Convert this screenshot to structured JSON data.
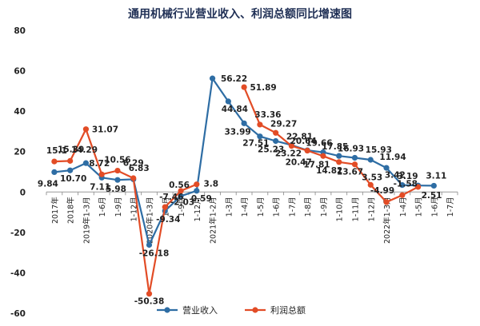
{
  "chart_data": {
    "type": "line",
    "title": "通用机械行业营业收入、利润总额同比增速图",
    "ylim": [
      -60,
      80
    ],
    "yticks": [
      80,
      60,
      40,
      20,
      0,
      -20,
      -40,
      -60
    ],
    "grid": false,
    "legend_position": "bottom-center",
    "categories": [
      "2017年",
      "2018年",
      "2019年1-3月",
      "1-6月",
      "1-9月",
      "1-12月",
      "2020年1-3月",
      "1-6月",
      "1-9月",
      "1-12月",
      "2021年1-2月",
      "1-3月",
      "1-4月",
      "1-5月",
      "1-6月",
      "1-7月",
      "1-8月",
      "1-9月",
      "1-10月",
      "1-11月",
      "1-12月",
      "2022年1-3月",
      "1-4月",
      "1-5月",
      "1-6月",
      "1-7月"
    ],
    "series": [
      {
        "name": "营业收入",
        "color": "#2e6da4",
        "values": [
          9.84,
          10.7,
          14.29,
          7.11,
          5.98,
          6.29,
          -26.18,
          -9.34,
          -2.03,
          0.59,
          56.22,
          44.84,
          33.99,
          27.51,
          25.23,
          23.22,
          20.64,
          19.66,
          17.85,
          16.93,
          15.93,
          11.94,
          3.42,
          3.19,
          3.11,
          null
        ],
        "labels": [
          "9.84",
          "10.70",
          "14.29",
          "7.11",
          "5.98",
          "6.29",
          "-26.18",
          "-9.34",
          "-2.03",
          "0.59",
          "56.22",
          "44.84",
          "33.99",
          "27.51",
          "25.23",
          "23.22",
          "20.64",
          "19.66",
          "17.85",
          "16.93",
          "15.93",
          "11.94",
          "3.42",
          "3.19",
          "3.11",
          ""
        ]
      },
      {
        "name": "利润总额",
        "color": "#e24c26",
        "values": [
          15.1,
          15.39,
          31.07,
          8.72,
          10.56,
          6.83,
          -50.38,
          -7.46,
          0.56,
          3.8,
          null,
          null,
          51.89,
          33.36,
          29.27,
          22.81,
          20.47,
          17.81,
          14.82,
          13.67,
          3.53,
          -4.99,
          -1.58,
          2.51,
          null,
          null
        ],
        "labels": [
          "15.1",
          "15.39",
          "31.07",
          "8.72",
          "10.56",
          "6.83",
          "-50.38",
          "-7.46",
          "0.56",
          "3.8",
          "",
          "",
          "51.89",
          "33.36",
          "29.27",
          "22.81",
          "20.47",
          "17.81",
          "14.82",
          "13.67",
          "3.53",
          "-4.99",
          "-1.58",
          "2.51",
          "",
          ""
        ]
      }
    ]
  }
}
